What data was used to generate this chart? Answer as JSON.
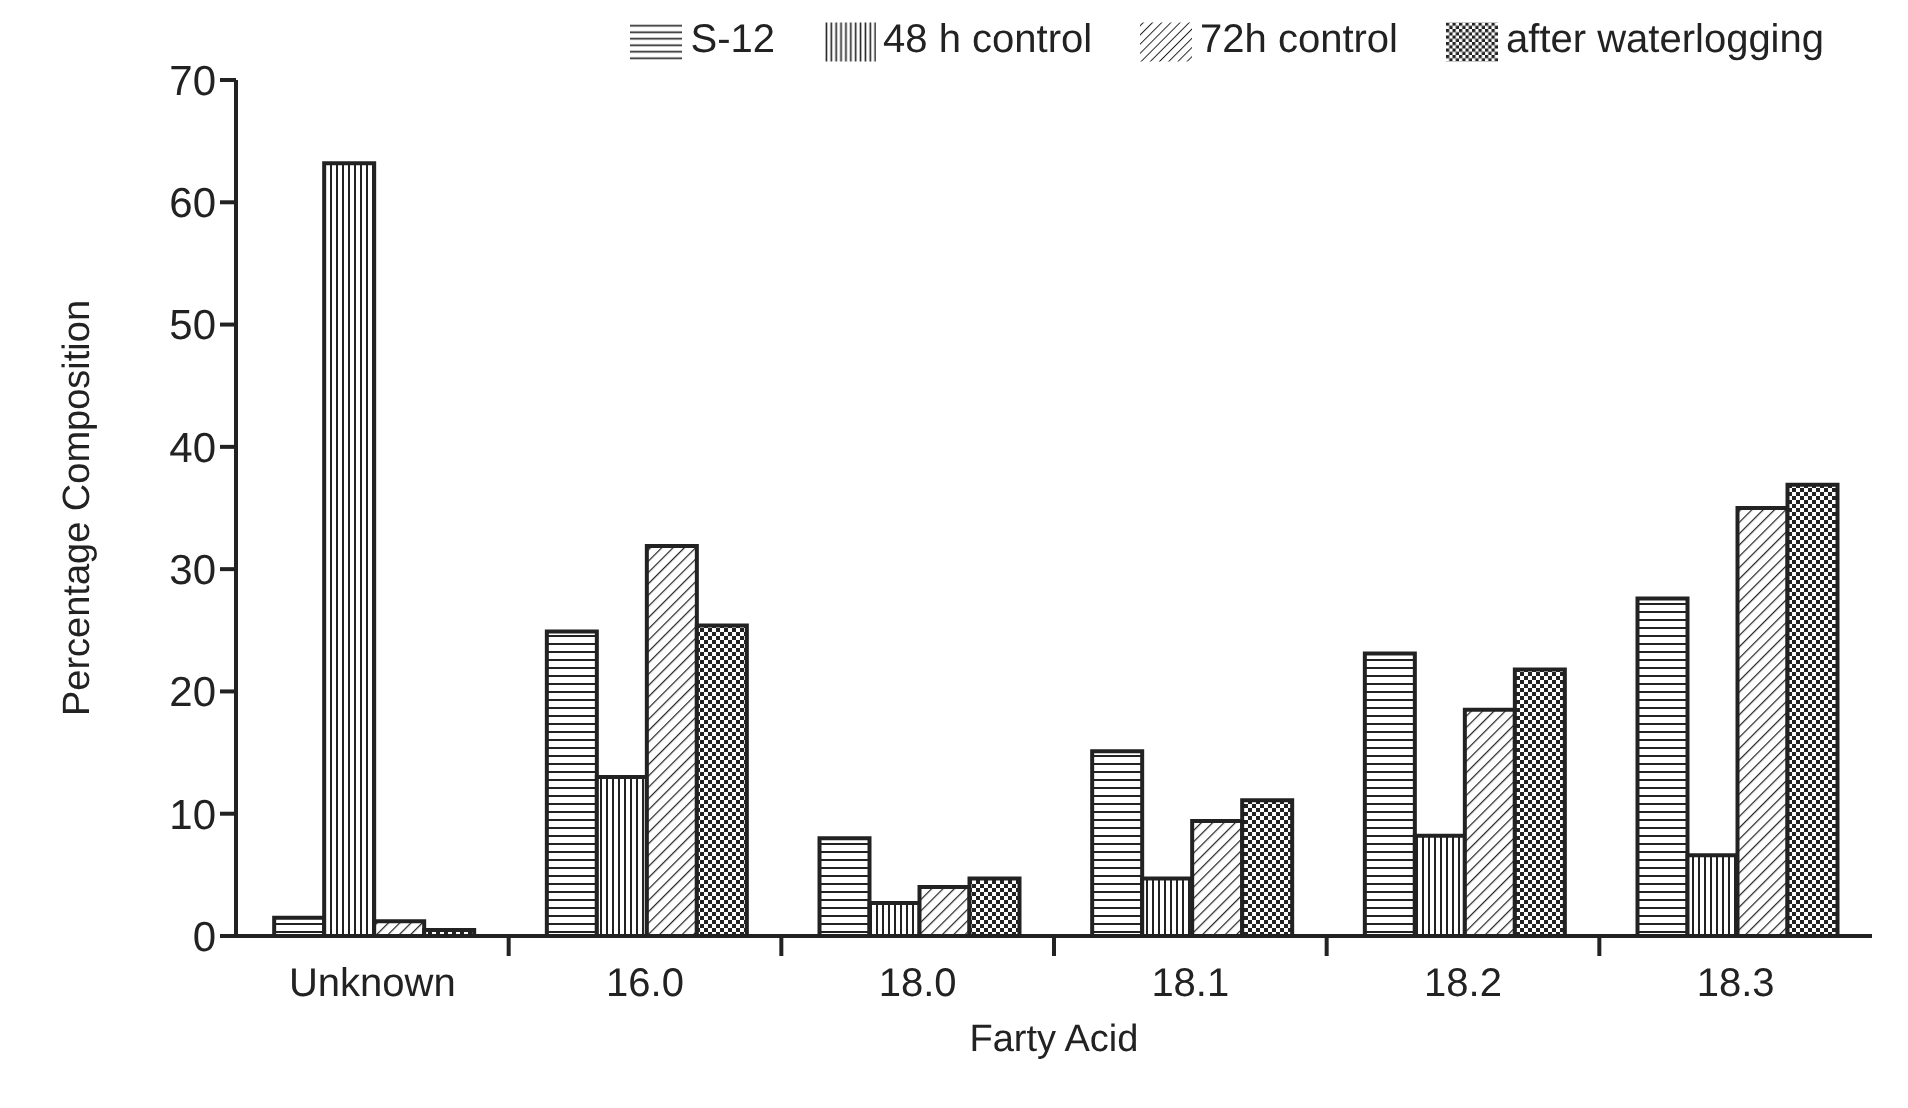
{
  "chart_data": {
    "type": "bar",
    "xlabel": "Farty Acid",
    "ylabel": "Percentage Composition",
    "categories": [
      "Unknown",
      "16.0",
      "18.0",
      "18.1",
      "18.2",
      "18.3"
    ],
    "series": [
      {
        "name": "S-12",
        "color": "#222222",
        "values": [
          1.5,
          24.9,
          8.0,
          15.1,
          23.1,
          27.6
        ]
      },
      {
        "name": "48 h control",
        "color": "#222222",
        "values": [
          63.2,
          13.0,
          2.7,
          4.7,
          8.2,
          6.6
        ]
      },
      {
        "name": "72h control",
        "color": "#222222",
        "values": [
          1.2,
          31.9,
          4.0,
          9.4,
          18.5,
          35.0
        ]
      },
      {
        "name": "after waterlogging",
        "color": "#222222",
        "values": [
          0.5,
          25.4,
          4.7,
          11.1,
          21.8,
          36.9
        ]
      }
    ],
    "ylim": [
      0,
      70
    ],
    "yticks": [
      0,
      10,
      20,
      30,
      40,
      50,
      60,
      70
    ],
    "grid": false,
    "legend": "top"
  }
}
